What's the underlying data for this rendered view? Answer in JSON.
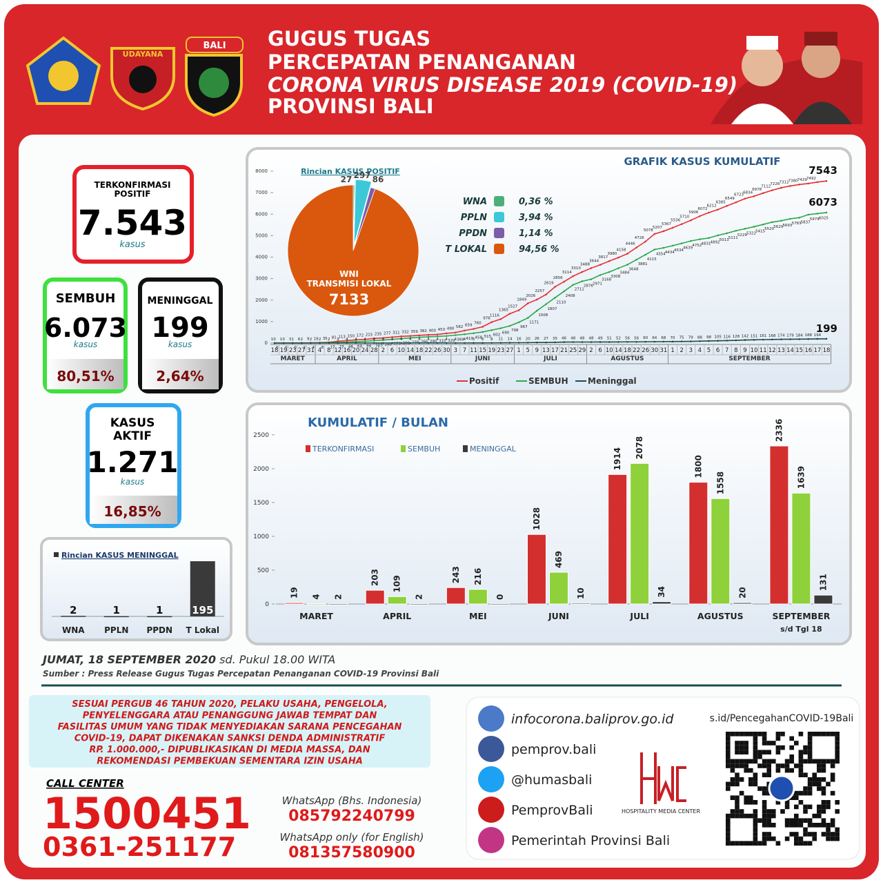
{
  "header": {
    "title_lines": [
      "GUGUS TUGAS",
      "PERCEPATAN PENANGANAN",
      "CORONA VIRUS DISEASE 2019 (COVID-19)",
      "PROVINSI BALI"
    ],
    "logo_texts": [
      "UDAYANA",
      "BALI"
    ]
  },
  "stats": {
    "confirmed": {
      "label_lines": [
        "TERKONFIRMASI",
        "POSITIF"
      ],
      "value": "7.543",
      "unit": "kasus"
    },
    "recovered": {
      "label": "SEMBUH",
      "value": "6.073",
      "unit": "kasus",
      "percent": "80,51%"
    },
    "deaths": {
      "label": "MENINGGAL",
      "value": "199",
      "unit": "kasus",
      "percent": "2,64%"
    },
    "active": {
      "label_lines": [
        "KASUS",
        "AKTIF"
      ],
      "value": "1.271",
      "unit": "kasus",
      "percent": "16,85%"
    }
  },
  "chart_data": [
    {
      "type": "line",
      "title": "GRAFIK KASUS KUMULATIF",
      "categories": [
        "18",
        "19",
        "23",
        "27",
        "31",
        "4",
        "8",
        "12",
        "16",
        "20",
        "24",
        "28",
        "2",
        "6",
        "10",
        "14",
        "18",
        "22",
        "26",
        "30",
        "3",
        "7",
        "11",
        "15",
        "19",
        "23",
        "27",
        "1",
        "5",
        "9",
        "13",
        "17",
        "21",
        "25",
        "29",
        "2",
        "6",
        "10",
        "14",
        "18",
        "22",
        "26",
        "30",
        "31",
        "1",
        "2",
        "3",
        "4",
        "5",
        "6",
        "7",
        "8",
        "9",
        "10",
        "11",
        "12",
        "13",
        "14",
        "15",
        "16",
        "17",
        "18"
      ],
      "month_labels": [
        "MARET",
        "APRIL",
        "MEI",
        "JUNI",
        "JULI",
        "AGUSTUS",
        "SEPTEMBER"
      ],
      "ylim": [
        0,
        8000
      ],
      "yticks": [
        0,
        1000,
        2000,
        3000,
        4000,
        5000,
        6000,
        7000,
        8000
      ],
      "grid": false,
      "series": [
        {
          "name": "Positif",
          "color": "#e23030",
          "values": [
            1,
            1,
            3,
            6,
            9,
            19,
            35,
            81,
            113,
            150,
            172,
            215,
            235,
            277,
            311,
            332,
            359,
            382,
            400,
            453,
            490,
            582,
            659,
            760,
            976,
            1116,
            1365,
            1527,
            1849,
            2026,
            2257,
            2619,
            2856,
            3114,
            3310,
            3488,
            3644,
            3817,
            3980,
            4158,
            4446,
            4726,
            5078,
            5207,
            5367,
            5536,
            5710,
            5906,
            6072,
            6212,
            6385,
            6549,
            6723,
            6834,
            6978,
            7112,
            7226,
            7312,
            7380,
            7429,
            7492,
            7543
          ]
        },
        {
          "name": "SEMBUH",
          "color": "#2aa84a",
          "values": [
            0,
            0,
            0,
            2,
            4,
            8,
            17,
            27,
            44,
            63,
            84,
            113,
            140,
            171,
            206,
            238,
            266,
            290,
            310,
            329,
            369,
            410,
            458,
            515,
            602,
            690,
            798,
            967,
            1171,
            1508,
            1807,
            2110,
            2408,
            2711,
            2876,
            2971,
            3168,
            3308,
            3484,
            3648,
            3881,
            4115,
            4354,
            4434,
            4534,
            4639,
            4752,
            4831,
            4892,
            5013,
            5111,
            5229,
            5322,
            5415,
            5520,
            5629,
            5693,
            5783,
            5837,
            5979,
            6025,
            6073
          ]
        },
        {
          "name": "Meninggal",
          "color": "#1d4a4a",
          "values": [
            0,
            0,
            1,
            2,
            2,
            2,
            2,
            3,
            4,
            4,
            4,
            4,
            4,
            4,
            4,
            4,
            4,
            4,
            4,
            4,
            4,
            4,
            5,
            6,
            8,
            11,
            14,
            16,
            20,
            26,
            27,
            35,
            46,
            48,
            48,
            48,
            49,
            51,
            52,
            56,
            56,
            60,
            64,
            68,
            70,
            75,
            79,
            88,
            98,
            105,
            116,
            128,
            142,
            151,
            161,
            168,
            174,
            179,
            184,
            188,
            194,
            199
          ]
        }
      ]
    },
    {
      "type": "pie",
      "title": "Rincian KASUS POSITIF",
      "categories": [
        "WNA",
        "PPLN",
        "PPDN",
        "T LOKAL"
      ],
      "values": [
        27,
        297,
        86,
        7133
      ],
      "colors": [
        "#4caf78",
        "#3cc8d8",
        "#7b5ea7",
        "#d9580e"
      ],
      "center_label": [
        "WNI",
        "TRANSMISI LOKAL"
      ],
      "shares": {
        "values": [
          0.36,
          3.94,
          1.14,
          94.56
        ],
        "value_labels": [
          "0,36 %",
          "3,94 %",
          "1,14 %",
          "94,56 %"
        ]
      }
    },
    {
      "type": "bar",
      "title": "KUMULATIF / BULAN",
      "categories": [
        "MARET",
        "APRIL",
        "MEI",
        "JUNI",
        "JULI",
        "AGUSTUS",
        "SEPTEMBER"
      ],
      "note": "s/d Tgl 18",
      "ylim": [
        0,
        2500
      ],
      "yticks": [
        0,
        500,
        1000,
        1500,
        2000,
        2500
      ],
      "series": [
        {
          "name": "TERKONFIRMASI",
          "color": "#d32f2f",
          "values": [
            19,
            203,
            243,
            1028,
            1914,
            1800,
            2336
          ]
        },
        {
          "name": "SEMBUH",
          "color": "#8ed13a",
          "values": [
            4,
            109,
            216,
            469,
            2078,
            1558,
            1639
          ]
        },
        {
          "name": "MENINGGAL",
          "color": "#3a3a3a",
          "values": [
            2,
            2,
            0,
            10,
            34,
            20,
            131
          ]
        }
      ]
    },
    {
      "type": "bar",
      "title": "Rincian KASUS MENINGGAL",
      "categories": [
        "WNA",
        "PPLN",
        "PPDN",
        "T Lokal"
      ],
      "values": [
        2,
        1,
        1,
        195
      ],
      "color": "#3a3a3a",
      "ylim": [
        0,
        200
      ]
    }
  ],
  "date_line": {
    "date": "JUMAT, 18 SEPTEMBER 2020",
    "time": "sd. Pukul 18.00 WITA"
  },
  "source": "Sumber :  Press Release Gugus Tugas Percepatan Penanganan COVID-19 Provinsi Bali",
  "notice": [
    "SESUAI PERGUB 46 TAHUN 2020, PELAKU USAHA, PENGELOLA,",
    "PENYELENGGARA ATAU PENANGGUNG JAWAB TEMPAT DAN",
    "FASILITAS UMUM YANG TIDAK MENYEDIAKAN SARANA PENCEGAHAN",
    "COVID-19, DAPAT DIKENAKAN SANKSI DENDA ADMINISTRATIF",
    "RP. 1.000.000,- DIPUBLIKASIKAN DI MEDIA MASSA, DAN",
    "REKOMENDASI PEMBEKUAN SEMENTARA IZIN USAHA"
  ],
  "call_center": {
    "label": "CALL CENTER",
    "numbers": [
      "1500451",
      "0361-251177"
    ]
  },
  "whatsapp": [
    {
      "label": "WhatsApp (Bhs. Indonesia)",
      "number": "085792240799"
    },
    {
      "label": "WhatsApp only (for English)",
      "number": "081357580900"
    }
  ],
  "socials": [
    "infocorona.baliprov.go.id",
    "pemprov.bali",
    "@humasbali",
    "PemprovBali",
    "Pemerintah Provinsi Bali"
  ],
  "hmc": "HOSPITALITY MEDIA CENTER",
  "qr_url": "s.id/PencegahanCOVID-19Bali"
}
